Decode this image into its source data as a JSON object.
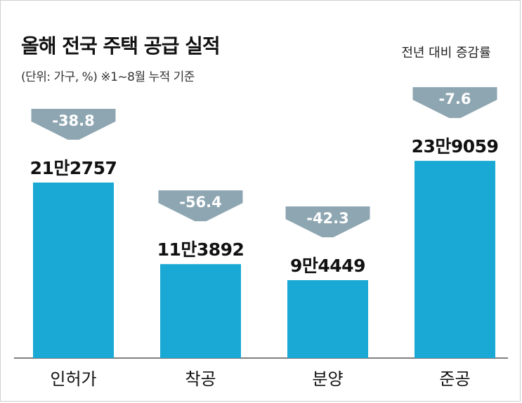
{
  "chart_data": {
    "type": "bar",
    "title": "올해 전국 주택 공급 실적",
    "subtitle": "(단위: 가구, %)  ※1~8월 누적 기준",
    "change_note": "전년 대비 증감률",
    "categories": [
      "인허가",
      "착공",
      "분양",
      "준공"
    ],
    "values": [
      212757,
      113892,
      94449,
      239059
    ],
    "value_labels": [
      "21만2757",
      "11만3892",
      "9만4449",
      "23만9059"
    ],
    "changes": [
      -38.8,
      -56.4,
      -42.3,
      -7.6
    ],
    "change_labels": [
      "-38.8",
      "-56.4",
      "-42.3",
      "-7.6"
    ],
    "ylim": [
      0,
      240000
    ],
    "grid": false,
    "colors": {
      "bar": "#1aa9d4",
      "arrow": "#8ea6b2",
      "arrow_text": "#ffffff",
      "text": "#111111"
    }
  }
}
